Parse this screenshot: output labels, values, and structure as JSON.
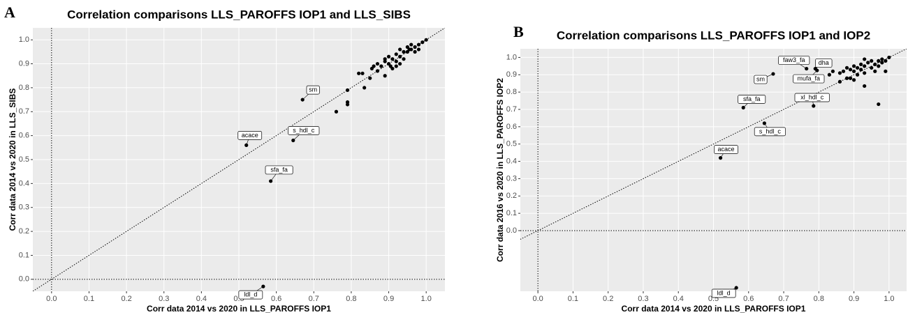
{
  "chart_data": [
    {
      "type": "scatter",
      "panel": "A",
      "title": "Correlation comparisons LLS_PAROFFS IOP1 and LLS_SIBS",
      "x_label": "Corr data 2014 vs 2020 in LLS_PAROFFS IOP1",
      "y_label": "Corr data 2014 vs 2020 in LLS_SIBS",
      "color": "#000000",
      "grid": true,
      "identity_line": true,
      "zero_lines": true,
      "xlim": [
        -0.05,
        1.05
      ],
      "ylim": [
        -0.05,
        1.05
      ],
      "xticks": [
        {
          "value": 0,
          "label": "0.0"
        },
        0.1,
        0.2,
        0.3,
        0.4,
        0.5,
        0.6,
        0.7,
        0.8,
        0.9,
        {
          "value": 1,
          "label": "1.0"
        }
      ],
      "yticks": [
        {
          "value": 0,
          "label": "0.0"
        },
        0.1,
        0.2,
        0.3,
        0.4,
        0.5,
        0.6,
        0.7,
        0.8,
        0.9,
        {
          "value": 1,
          "label": "1.0"
        }
      ],
      "x": [
        0.67,
        0.52,
        0.645,
        0.585,
        0.565,
        0.76,
        0.79,
        0.79,
        0.79,
        0.82,
        0.83,
        0.835,
        0.85,
        0.855,
        0.87,
        0.87,
        0.88,
        0.89,
        0.89,
        0.9,
        0.9,
        0.91,
        0.91,
        0.92,
        0.92,
        0.93,
        0.93,
        0.93,
        0.94,
        0.94,
        0.95,
        0.95,
        0.96,
        0.96,
        0.97,
        0.97,
        0.98,
        0.98,
        0.99,
        1.0,
        0.89,
        0.905,
        0.86,
        0.92,
        0.955
      ],
      "y": [
        0.75,
        0.56,
        0.58,
        0.41,
        -0.03,
        0.7,
        0.73,
        0.74,
        0.79,
        0.86,
        0.86,
        0.8,
        0.84,
        0.88,
        0.87,
        0.9,
        0.89,
        0.85,
        0.92,
        0.93,
        0.9,
        0.88,
        0.92,
        0.91,
        0.94,
        0.9,
        0.93,
        0.96,
        0.95,
        0.92,
        0.97,
        0.95,
        0.98,
        0.96,
        0.97,
        0.95,
        0.98,
        0.96,
        0.99,
        1.0,
        0.91,
        0.89,
        0.89,
        0.89,
        0.96
      ],
      "labels": [
        "sm",
        "acace",
        "s_hdl_c",
        "sfa_fa",
        "ldl_d",
        null,
        null,
        null,
        null,
        null,
        null,
        null,
        null,
        null,
        null,
        null,
        null,
        null,
        null,
        null,
        null,
        null,
        null,
        null,
        null,
        null,
        null,
        null,
        null,
        null,
        null,
        null,
        null,
        null,
        null,
        null,
        null,
        null,
        null,
        null,
        null,
        null,
        null,
        null,
        null
      ]
    },
    {
      "type": "scatter",
      "panel": "B",
      "title": "Correlation comparisons LLS_PAROFFS IOP1 and IOP2",
      "x_label": "Corr data 2014 vs 2020 in LLS_PAROFFS IOP1",
      "y_label": "Corr data 2016 vs 2020 in LLS_PAROFFS IOP2",
      "color": "#000000",
      "grid": true,
      "identity_line": true,
      "zero_lines": true,
      "xlim": [
        -0.05,
        1.05
      ],
      "ylim": [
        -0.35,
        1.05
      ],
      "xticks": [
        {
          "value": 0,
          "label": "0.0"
        },
        0.1,
        0.2,
        0.3,
        0.4,
        0.5,
        0.6,
        0.7,
        0.8,
        0.9,
        {
          "value": 1,
          "label": "1.0"
        }
      ],
      "yticks": [
        {
          "value": 0,
          "label": "0.0"
        },
        0.1,
        0.2,
        0.3,
        0.4,
        0.5,
        0.6,
        0.7,
        0.8,
        0.9,
        {
          "value": 1,
          "label": "1.0"
        }
      ],
      "x": [
        0.67,
        0.765,
        0.79,
        0.795,
        0.785,
        0.585,
        0.645,
        0.52,
        0.565,
        0.83,
        0.84,
        0.86,
        0.87,
        0.88,
        0.89,
        0.89,
        0.9,
        0.9,
        0.91,
        0.91,
        0.92,
        0.92,
        0.93,
        0.93,
        0.93,
        0.94,
        0.95,
        0.95,
        0.96,
        0.96,
        0.97,
        0.97,
        0.98,
        0.98,
        0.99,
        1.0,
        0.97,
        0.93,
        0.86,
        0.99,
        0.88,
        0.9
      ],
      "y": [
        0.905,
        0.935,
        0.935,
        0.925,
        0.72,
        0.71,
        0.62,
        0.42,
        -0.33,
        0.9,
        0.92,
        0.91,
        0.92,
        0.94,
        0.88,
        0.93,
        0.92,
        0.95,
        0.9,
        0.94,
        0.93,
        0.96,
        0.91,
        0.95,
        0.99,
        0.97,
        0.94,
        0.98,
        0.96,
        0.92,
        0.98,
        0.95,
        0.97,
        0.99,
        0.98,
        1.0,
        0.73,
        0.835,
        0.86,
        0.92,
        0.88,
        0.87
      ],
      "labels": [
        "sm",
        "faw3_fa",
        "dha",
        "mufa_fa",
        "xl_hdl_c",
        "sfa_fa",
        "s_hdl_c",
        "acace",
        "ldl_d",
        null,
        null,
        null,
        null,
        null,
        null,
        null,
        null,
        null,
        null,
        null,
        null,
        null,
        null,
        null,
        null,
        null,
        null,
        null,
        null,
        null,
        null,
        null,
        null,
        null,
        null,
        null,
        null,
        null,
        null,
        null,
        null,
        null
      ]
    }
  ]
}
